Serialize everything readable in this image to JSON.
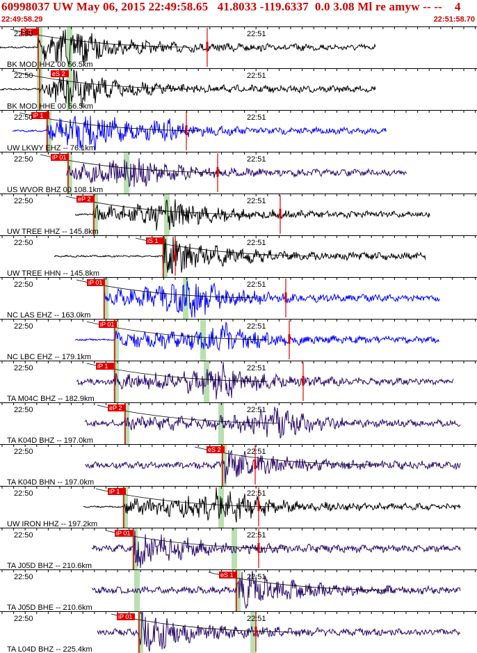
{
  "header": {
    "title": "60998037 UW May 06, 2015 22:49:58.65   41.8033 -119.6337  0.0 3.08 Ml re amyw -- --    4",
    "start_time": "22:49:58.29",
    "end_time": "22:51:58.70"
  },
  "colors": {
    "title": "#cc0000",
    "pick": "#e00000",
    "window": "#b8e0b0",
    "black_trace": "#000000",
    "blue_trace": "#0000ff",
    "purple_trace": "#2a0a6a"
  },
  "tick_labels": {
    "a": "22:50",
    "b": "22:51"
  },
  "panels": [
    {
      "label": "BK MOD HHZ 00 56.5km",
      "pick": "S 2",
      "color": "black"
    },
    {
      "label": "BK MOD HHE 00 56.5km",
      "pick": "eS 2",
      "color": "black"
    },
    {
      "label": "UW LKWY EHZ -- 76.1km",
      "pick": "iP 1",
      "color": "blue"
    },
    {
      "label": "US WVOR BHZ 00 108.1km",
      "pick": "iP 01",
      "color": "purple"
    },
    {
      "label": "UW TREE HHZ -- 145.8km",
      "pick": "eP 2",
      "color": "black"
    },
    {
      "label": "UW TREE HHN -- 145.8km",
      "pick": "iS 1",
      "color": "black"
    },
    {
      "label": "NC LAS EHZ -- 163.0km",
      "pick": "iP 01",
      "color": "blue"
    },
    {
      "label": "NC LBC EHZ -- 179.1km",
      "pick": "iP 01",
      "color": "blue"
    },
    {
      "label": "TA M04C BHZ -- 182.9km",
      "pick": "iP 1",
      "color": "purple"
    },
    {
      "label": "TA K04D BHZ -- 197.0km",
      "pick": "eP 2",
      "color": "purple"
    },
    {
      "label": "TA K04D BHN -- 197.0km",
      "pick": "eS 2",
      "color": "purple"
    },
    {
      "label": "UW IRON HHZ -- 197.2km",
      "pick": "iP 1",
      "color": "black"
    },
    {
      "label": "TA J05D BHZ -- 210.6km",
      "pick": "iP 01",
      "color": "purple"
    },
    {
      "label": "TA J05D BHE -- 210.6km",
      "pick": "eS 1",
      "color": "purple"
    },
    {
      "label": "TA L04D BHZ -- 225.4km",
      "pick": "iP 01",
      "color": "purple"
    }
  ]
}
